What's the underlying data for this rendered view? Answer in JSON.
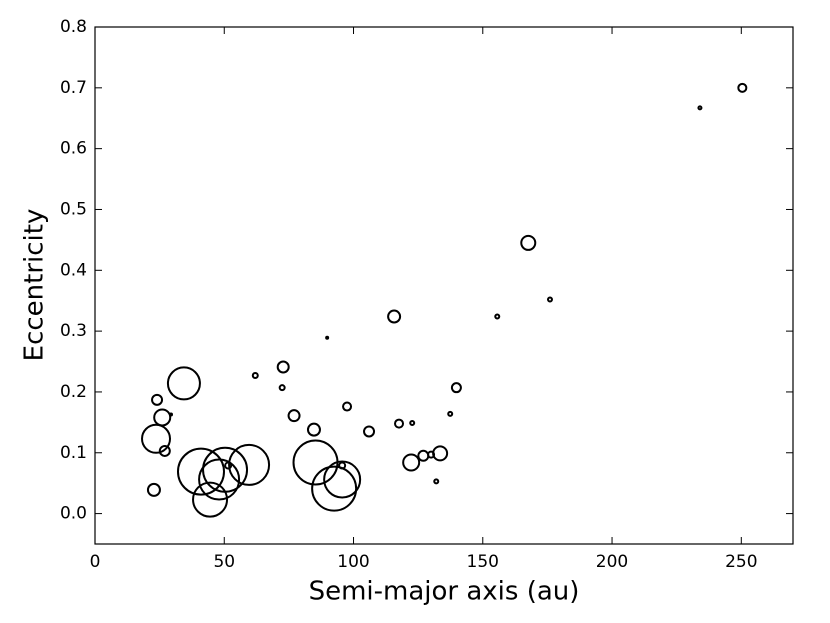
{
  "chart_data": {
    "type": "scatter",
    "xlabel": "Semi-major axis (au)",
    "ylabel": "Eccentricity",
    "x": [
      250.4,
      234,
      167.6,
      176,
      155.6,
      89.8,
      115.7,
      139.8,
      137.4,
      122.7,
      117.6,
      106,
      97.5,
      84.7,
      77,
      72.8,
      72.4,
      62,
      34.4,
      24,
      26,
      29.4,
      23.6,
      27,
      22.8,
      41,
      50.3,
      51.5,
      48,
      59.6,
      44.5,
      85.3,
      95.6,
      92.5,
      95.6,
      122.3,
      127,
      130,
      133.5,
      132
    ],
    "y": [
      0.7,
      0.667,
      0.445,
      0.352,
      0.324,
      0.289,
      0.324,
      0.207,
      0.164,
      0.149,
      0.148,
      0.135,
      0.176,
      0.138,
      0.161,
      0.241,
      0.207,
      0.227,
      0.214,
      0.187,
      0.158,
      0.163,
      0.123,
      0.103,
      0.039,
      0.069,
      0.072,
      0.079,
      0.056,
      0.08,
      0.023,
      0.084,
      0.056,
      0.041,
      0.079,
      0.084,
      0.095,
      0.097,
      0.099,
      0.053
    ],
    "sizes": [
      4,
      1.5,
      7,
      2,
      2,
      1,
      6,
      4.5,
      2,
      2,
      4,
      5,
      4,
      6,
      5.5,
      5.5,
      2.5,
      2.5,
      16,
      5,
      8,
      1,
      14,
      5,
      6,
      23,
      22,
      3,
      20,
      20,
      17,
      22,
      18,
      22,
      3,
      8,
      5,
      3,
      7,
      2
    ],
    "color": "#000000",
    "xlim": [
      0,
      270
    ],
    "xticks": [
      0,
      50,
      100,
      150,
      200,
      250
    ],
    "ylim": [
      -0.05,
      0.8
    ],
    "yticks": [
      {
        "value": 0,
        "label": "0.0"
      },
      0.1,
      0.2,
      0.3,
      0.4,
      0.5,
      0.6,
      0.7,
      0.8
    ]
  }
}
